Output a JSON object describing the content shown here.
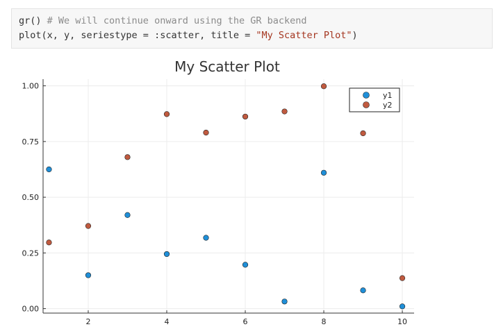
{
  "code_cell": {
    "line1": {
      "code": "gr() ",
      "comment": "# We will continue onward using the GR backend"
    },
    "line2": {
      "code": "plot(x, y, seriestype = :scatter, title = ",
      "string": "\"My Scatter Plot\"",
      "close": ")"
    }
  },
  "chart_data": {
    "type": "scatter",
    "title": "My Scatter Plot",
    "xlabel": "",
    "ylabel": "",
    "xlim": [
      0.85,
      10.3
    ],
    "ylim": [
      -0.02,
      1.03
    ],
    "grid": true,
    "legend_position": "top-right",
    "x_ticks": [
      2,
      4,
      6,
      8,
      10
    ],
    "x_tick_labels": [
      "2",
      "4",
      "6",
      "8",
      "10"
    ],
    "y_ticks": [
      0.0,
      0.25,
      0.5,
      0.75,
      1.0
    ],
    "y_tick_labels": [
      "0.00",
      "0.25",
      "0.50",
      "0.75",
      "1.00"
    ],
    "series": [
      {
        "name": "y1",
        "color": "#1f8fd8",
        "x": [
          1,
          2,
          3,
          4,
          5,
          6,
          7,
          8,
          9,
          10
        ],
        "y": [
          0.625,
          0.15,
          0.42,
          0.245,
          0.318,
          0.197,
          0.032,
          0.61,
          0.082,
          0.01
        ]
      },
      {
        "name": "y2",
        "color": "#c05a3f",
        "x": [
          1,
          2,
          3,
          4,
          5,
          6,
          7,
          8,
          9,
          10
        ],
        "y": [
          0.297,
          0.371,
          0.68,
          0.873,
          0.79,
          0.862,
          0.885,
          0.998,
          0.787,
          0.137
        ]
      }
    ]
  }
}
